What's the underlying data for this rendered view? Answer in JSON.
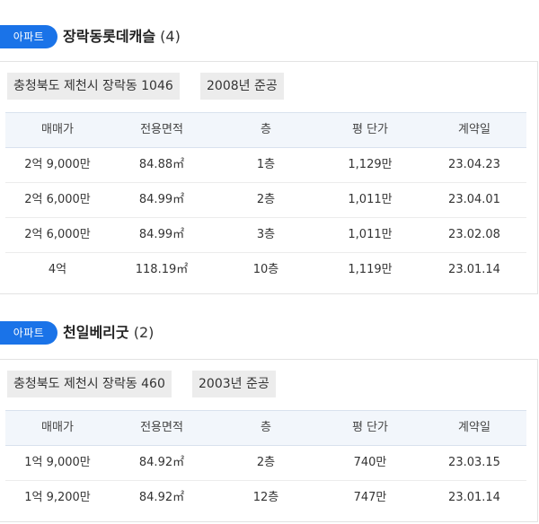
{
  "listings": [
    {
      "badge": "아파트",
      "name": "장락동롯데캐슬",
      "count": "(4)",
      "address": "충청북도 제천시 장락동 1046",
      "built": "2008년 준공",
      "columns": [
        "매매가",
        "전용면적",
        "층",
        "평 단가",
        "계약일"
      ],
      "rows": [
        {
          "price": "2억 9,000만",
          "area": "84.88㎡",
          "floor": "1층",
          "unit_price": "1,129만",
          "date": "23.04.23"
        },
        {
          "price": "2억 6,000만",
          "area": "84.99㎡",
          "floor": "2층",
          "unit_price": "1,011만",
          "date": "23.04.01"
        },
        {
          "price": "2억 6,000만",
          "area": "84.99㎡",
          "floor": "3층",
          "unit_price": "1,011만",
          "date": "23.02.08"
        },
        {
          "price": "4억",
          "area": "118.19㎡",
          "floor": "10층",
          "unit_price": "1,119만",
          "date": "23.01.14"
        }
      ]
    },
    {
      "badge": "아파트",
      "name": "천일베리굿",
      "count": "(2)",
      "address": "충청북도 제천시 장락동 460",
      "built": "2003년 준공",
      "columns": [
        "매매가",
        "전용면적",
        "층",
        "평 단가",
        "계약일"
      ],
      "rows": [
        {
          "price": "1억 9,000만",
          "area": "84.92㎡",
          "floor": "2층",
          "unit_price": "740만",
          "date": "23.03.15"
        },
        {
          "price": "1억 9,200만",
          "area": "84.92㎡",
          "floor": "12층",
          "unit_price": "747만",
          "date": "23.01.14"
        }
      ]
    }
  ]
}
